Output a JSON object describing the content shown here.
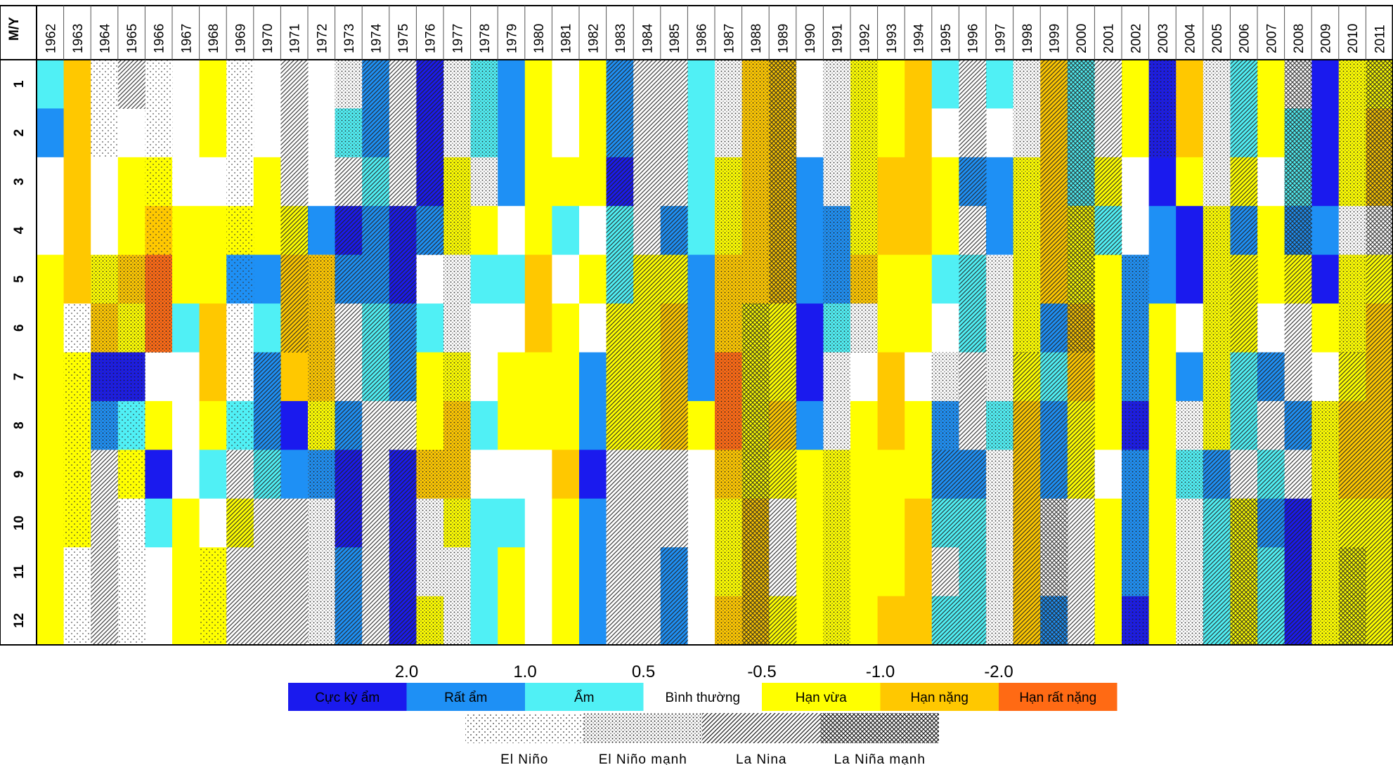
{
  "chart_data": {
    "type": "heatmap",
    "corner_label": "M/Y",
    "x": [
      "1962",
      "1963",
      "1964",
      "1965",
      "1966",
      "1967",
      "1968",
      "1969",
      "1970",
      "1971",
      "1972",
      "1973",
      "1974",
      "1975",
      "1976",
      "1977",
      "1978",
      "1979",
      "1980",
      "1981",
      "1982",
      "1983",
      "1984",
      "1985",
      "1986",
      "1987",
      "1988",
      "1989",
      "1990",
      "1991",
      "1992",
      "1993",
      "1994",
      "1995",
      "1996",
      "1997",
      "1998",
      "1999",
      "2000",
      "2001",
      "2002",
      "2003",
      "2004",
      "2005",
      "2006",
      "2007",
      "2008",
      "2009",
      "2010",
      "2011"
    ],
    "y": [
      "1",
      "2",
      "3",
      "4",
      "5",
      "6",
      "7",
      "8",
      "9",
      "10",
      "11",
      "12"
    ],
    "thresholds": [
      "2.0",
      "1.0",
      "0.5",
      "-0.5",
      "-1.0",
      "-2.0"
    ],
    "categories": [
      {
        "label": "Cực kỳ ẩm",
        "color": "#1a1aee"
      },
      {
        "label": "Rất ẩm",
        "color": "#1e90f5"
      },
      {
        "label": "Ẩm",
        "color": "#50f0f5"
      },
      {
        "label": "Bình thường",
        "color": "#ffffff"
      },
      {
        "label": "Hạn vừa",
        "color": "#ffff00"
      },
      {
        "label": "Hạn nặng",
        "color": "#ffc800"
      },
      {
        "label": "Hạn rất nặng",
        "color": "#ff6a14"
      }
    ],
    "enso_categories": [
      {
        "label": "El Niño",
        "pattern": "sparse-dots"
      },
      {
        "label": "El Niño mạnh",
        "pattern": "dense-dots"
      },
      {
        "label": "La Nina",
        "pattern": "diagonal-hatch"
      },
      {
        "label": "La Niña mạnh",
        "pattern": "cross-hatch"
      }
    ],
    "legend_placement": "bottom",
    "values": [
      [
        2,
        1,
        3,
        3,
        4,
        4,
        4,
        4,
        4,
        4,
        4,
        4
      ],
      [
        5,
        5,
        5,
        5,
        5,
        3,
        4,
        4,
        4,
        4,
        3,
        3
      ],
      [
        3,
        3,
        3,
        3,
        4,
        5,
        0,
        1,
        3,
        3,
        3,
        3
      ],
      [
        3,
        3,
        4,
        4,
        5,
        4,
        0,
        2,
        4,
        3,
        3,
        3
      ],
      [
        3,
        3,
        4,
        5,
        6,
        6,
        3,
        4,
        0,
        2,
        3,
        3
      ],
      [
        3,
        3,
        3,
        4,
        4,
        2,
        3,
        3,
        3,
        4,
        4,
        4
      ],
      [
        4,
        4,
        3,
        4,
        4,
        5,
        5,
        4,
        2,
        3,
        4,
        4
      ],
      [
        3,
        3,
        3,
        4,
        1,
        3,
        3,
        2,
        3,
        4,
        3,
        3
      ],
      [
        3,
        3,
        4,
        4,
        1,
        2,
        1,
        1,
        2,
        3,
        3,
        3
      ],
      [
        3,
        3,
        3,
        4,
        5,
        5,
        5,
        0,
        1,
        3,
        3,
        3
      ],
      [
        3,
        3,
        3,
        1,
        5,
        5,
        5,
        4,
        1,
        3,
        3,
        3
      ],
      [
        3,
        2,
        3,
        0,
        1,
        3,
        3,
        1,
        0,
        0,
        1,
        1
      ],
      [
        1,
        1,
        2,
        1,
        1,
        2,
        2,
        3,
        3,
        3,
        3,
        3
      ],
      [
        3,
        3,
        3,
        0,
        0,
        1,
        1,
        3,
        0,
        0,
        0,
        0
      ],
      [
        0,
        0,
        0,
        1,
        3,
        2,
        4,
        4,
        5,
        3,
        3,
        4
      ],
      [
        3,
        3,
        4,
        4,
        3,
        3,
        4,
        5,
        5,
        4,
        3,
        3
      ],
      [
        2,
        2,
        3,
        4,
        2,
        3,
        3,
        2,
        3,
        2,
        2,
        2
      ],
      [
        1,
        1,
        1,
        3,
        2,
        3,
        4,
        4,
        3,
        2,
        4,
        4
      ],
      [
        4,
        4,
        4,
        4,
        5,
        5,
        4,
        4,
        3,
        3,
        3,
        3
      ],
      [
        3,
        3,
        4,
        2,
        3,
        4,
        4,
        4,
        5,
        4,
        4,
        4
      ],
      [
        4,
        4,
        4,
        3,
        4,
        3,
        1,
        1,
        0,
        1,
        1,
        1
      ],
      [
        1,
        1,
        0,
        2,
        2,
        4,
        4,
        4,
        3,
        3,
        3,
        3
      ],
      [
        3,
        3,
        3,
        3,
        4,
        4,
        4,
        4,
        3,
        3,
        3,
        3
      ],
      [
        3,
        3,
        3,
        1,
        4,
        5,
        5,
        5,
        3,
        3,
        1,
        1
      ],
      [
        2,
        2,
        2,
        2,
        1,
        1,
        1,
        4,
        3,
        3,
        3,
        3
      ],
      [
        3,
        3,
        4,
        4,
        5,
        5,
        6,
        6,
        5,
        4,
        4,
        5
      ],
      [
        5,
        5,
        5,
        5,
        5,
        4,
        4,
        4,
        4,
        5,
        5,
        5
      ],
      [
        5,
        5,
        5,
        5,
        5,
        4,
        4,
        5,
        4,
        3,
        3,
        4
      ],
      [
        3,
        3,
        1,
        1,
        1,
        0,
        0,
        1,
        4,
        4,
        4,
        4
      ],
      [
        3,
        3,
        3,
        1,
        1,
        2,
        3,
        3,
        4,
        4,
        4,
        4
      ],
      [
        4,
        4,
        4,
        4,
        5,
        3,
        3,
        4,
        4,
        4,
        4,
        4
      ],
      [
        4,
        4,
        5,
        5,
        4,
        4,
        5,
        5,
        4,
        4,
        4,
        5
      ],
      [
        5,
        5,
        5,
        5,
        4,
        4,
        3,
        4,
        4,
        5,
        5,
        5
      ],
      [
        2,
        3,
        4,
        4,
        2,
        3,
        3,
        1,
        1,
        2,
        3,
        2
      ],
      [
        3,
        3,
        1,
        3,
        2,
        2,
        3,
        3,
        1,
        2,
        2,
        2
      ],
      [
        2,
        3,
        1,
        1,
        3,
        3,
        3,
        2,
        3,
        3,
        3,
        3
      ],
      [
        3,
        3,
        4,
        4,
        4,
        4,
        4,
        5,
        5,
        5,
        5,
        5
      ],
      [
        5,
        5,
        5,
        5,
        5,
        1,
        2,
        1,
        1,
        3,
        3,
        1
      ],
      [
        2,
        2,
        2,
        4,
        4,
        5,
        5,
        4,
        4,
        3,
        3,
        3
      ],
      [
        3,
        3,
        4,
        2,
        4,
        4,
        4,
        4,
        3,
        4,
        4,
        4
      ],
      [
        4,
        4,
        3,
        3,
        1,
        1,
        1,
        0,
        1,
        1,
        1,
        0
      ],
      [
        0,
        0,
        0,
        1,
        1,
        4,
        4,
        4,
        4,
        4,
        4,
        4
      ],
      [
        5,
        5,
        4,
        0,
        0,
        3,
        1,
        3,
        2,
        3,
        3,
        3
      ],
      [
        3,
        3,
        3,
        4,
        4,
        4,
        4,
        4,
        1,
        2,
        2,
        2
      ],
      [
        2,
        2,
        4,
        1,
        4,
        4,
        2,
        2,
        3,
        4,
        4,
        4
      ],
      [
        4,
        4,
        3,
        4,
        4,
        3,
        1,
        3,
        2,
        1,
        2,
        2
      ],
      [
        3,
        2,
        2,
        1,
        4,
        3,
        3,
        1,
        3,
        0,
        0,
        0
      ],
      [
        0,
        0,
        0,
        1,
        0,
        4,
        3,
        4,
        4,
        4,
        4,
        4
      ],
      [
        4,
        4,
        4,
        3,
        4,
        4,
        4,
        5,
        5,
        4,
        4,
        4
      ],
      [
        4,
        5,
        5,
        3,
        4,
        5,
        5,
        5,
        5,
        4,
        4,
        4
      ]
    ],
    "enso": [
      [
        0,
        0,
        0,
        0,
        0,
        0,
        0,
        0,
        0,
        0,
        0,
        0
      ],
      [
        0,
        0,
        0,
        0,
        0,
        1,
        1,
        1,
        1,
        1,
        1,
        1
      ],
      [
        1,
        1,
        0,
        0,
        2,
        2,
        2,
        2,
        3,
        3,
        3,
        3
      ],
      [
        3,
        0,
        0,
        0,
        2,
        2,
        2,
        1,
        1,
        1,
        1,
        1
      ],
      [
        1,
        1,
        1,
        1,
        2,
        2,
        0,
        0,
        0,
        0,
        0,
        0
      ],
      [
        0,
        0,
        0,
        0,
        0,
        0,
        0,
        0,
        0,
        0,
        0,
        0
      ],
      [
        0,
        0,
        0,
        0,
        0,
        0,
        0,
        0,
        0,
        0,
        1,
        1
      ],
      [
        1,
        1,
        1,
        1,
        1,
        1,
        1,
        1,
        3,
        3,
        3,
        3
      ],
      [
        0,
        0,
        0,
        0,
        0,
        0,
        3,
        3,
        3,
        3,
        3,
        3
      ],
      [
        3,
        3,
        3,
        3,
        3,
        3,
        0,
        0,
        0,
        3,
        3,
        3
      ],
      [
        0,
        0,
        0,
        0,
        2,
        2,
        2,
        2,
        2,
        2,
        2,
        2
      ],
      [
        2,
        2,
        3,
        3,
        3,
        3,
        3,
        3,
        3,
        3,
        3,
        3
      ],
      [
        3,
        3,
        3,
        3,
        3,
        3,
        3,
        3,
        3,
        3,
        3,
        3
      ],
      [
        3,
        3,
        3,
        3,
        3,
        3,
        3,
        3,
        3,
        3,
        3,
        3
      ],
      [
        3,
        3,
        3,
        3,
        0,
        0,
        0,
        0,
        2,
        2,
        2,
        2
      ],
      [
        2,
        2,
        2,
        2,
        2,
        2,
        2,
        2,
        2,
        2,
        2,
        2
      ],
      [
        2,
        2,
        2,
        0,
        0,
        0,
        0,
        0,
        0,
        0,
        0,
        0
      ],
      [
        0,
        0,
        0,
        0,
        0,
        0,
        0,
        0,
        0,
        0,
        0,
        0
      ],
      [
        0,
        0,
        0,
        0,
        0,
        0,
        0,
        0,
        0,
        0,
        0,
        0
      ],
      [
        0,
        0,
        0,
        0,
        0,
        0,
        0,
        0,
        0,
        0,
        0,
        0
      ],
      [
        0,
        0,
        0,
        0,
        0,
        0,
        0,
        0,
        0,
        0,
        0,
        0
      ],
      [
        3,
        3,
        3,
        3,
        3,
        3,
        3,
        3,
        3,
        3,
        3,
        3
      ],
      [
        3,
        3,
        3,
        3,
        3,
        3,
        3,
        3,
        3,
        3,
        3,
        3
      ],
      [
        3,
        3,
        3,
        3,
        3,
        3,
        3,
        3,
        3,
        3,
        3,
        3
      ],
      [
        0,
        0,
        0,
        0,
        0,
        0,
        0,
        0,
        0,
        0,
        0,
        0
      ],
      [
        2,
        2,
        2,
        2,
        2,
        2,
        2,
        2,
        2,
        2,
        2,
        2
      ],
      [
        2,
        2,
        2,
        2,
        2,
        4,
        4,
        4,
        4,
        4,
        4,
        4
      ],
      [
        4,
        4,
        4,
        4,
        4,
        3,
        3,
        3,
        3,
        3,
        3,
        3
      ],
      [
        0,
        0,
        0,
        0,
        0,
        0,
        0,
        0,
        0,
        0,
        0,
        0
      ],
      [
        2,
        2,
        2,
        2,
        2,
        2,
        2,
        2,
        2,
        2,
        2,
        2
      ],
      [
        2,
        2,
        2,
        2,
        2,
        2,
        0,
        0,
        0,
        0,
        0,
        0
      ],
      [
        0,
        0,
        0,
        0,
        0,
        0,
        0,
        0,
        0,
        0,
        0,
        0
      ],
      [
        0,
        0,
        0,
        0,
        0,
        0,
        0,
        0,
        0,
        0,
        0,
        0
      ],
      [
        0,
        0,
        0,
        0,
        0,
        0,
        2,
        2,
        3,
        3,
        3,
        3
      ],
      [
        3,
        3,
        3,
        3,
        3,
        3,
        3,
        3,
        3,
        3,
        3,
        3
      ],
      [
        0,
        0,
        0,
        0,
        2,
        2,
        2,
        2,
        2,
        2,
        2,
        2
      ],
      [
        2,
        2,
        2,
        2,
        2,
        2,
        3,
        3,
        3,
        3,
        3,
        3
      ],
      [
        3,
        3,
        3,
        3,
        3,
        3,
        3,
        3,
        3,
        4,
        4,
        4
      ],
      [
        4,
        4,
        4,
        4,
        4,
        4,
        3,
        3,
        3,
        3,
        3,
        3
      ],
      [
        3,
        3,
        3,
        3,
        0,
        0,
        0,
        0,
        0,
        0,
        0,
        0
      ],
      [
        0,
        0,
        0,
        0,
        2,
        2,
        2,
        2,
        2,
        2,
        2,
        2
      ],
      [
        2,
        2,
        0,
        0,
        0,
        0,
        0,
        0,
        0,
        0,
        0,
        0
      ],
      [
        0,
        0,
        0,
        0,
        0,
        0,
        0,
        2,
        2,
        2,
        2,
        2
      ],
      [
        2,
        2,
        2,
        2,
        2,
        2,
        2,
        2,
        3,
        3,
        3,
        3
      ],
      [
        3,
        3,
        3,
        3,
        3,
        3,
        3,
        3,
        3,
        4,
        4,
        4
      ],
      [
        0,
        0,
        0,
        0,
        0,
        0,
        3,
        3,
        3,
        3,
        3,
        3
      ],
      [
        4,
        4,
        4,
        4,
        3,
        3,
        3,
        3,
        3,
        3,
        3,
        3
      ],
      [
        0,
        0,
        0,
        0,
        0,
        0,
        0,
        2,
        2,
        2,
        2,
        2
      ],
      [
        2,
        2,
        2,
        2,
        2,
        2,
        3,
        3,
        3,
        3,
        4,
        4
      ],
      [
        4,
        4,
        4,
        4,
        3,
        3,
        3,
        3,
        3,
        3,
        3,
        3
      ]
    ]
  }
}
